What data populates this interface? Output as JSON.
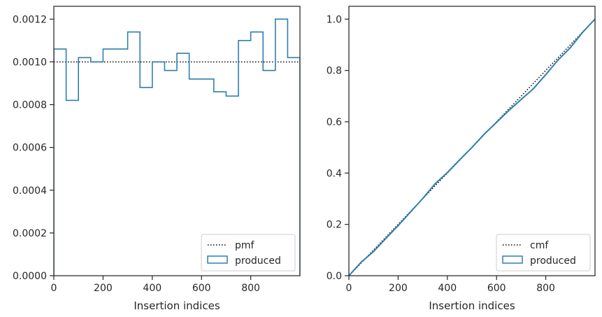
{
  "chart_data": [
    {
      "type": "histogram-step",
      "xlabel": "Insertion indices",
      "ylabel": "",
      "xlim": [
        0,
        1000
      ],
      "ylim": [
        0,
        0.00126
      ],
      "xticks": [
        0,
        200,
        400,
        600,
        800
      ],
      "xtick_labels": [
        "0",
        "200",
        "400",
        "600",
        "800"
      ],
      "yticks": [
        0,
        0.0002,
        0.0004,
        0.0006,
        0.0008,
        0.001,
        0.0012
      ],
      "ytick_labels": [
        "0.0000",
        "0.0002",
        "0.0004",
        "0.0006",
        "0.0008",
        "0.0010",
        "0.0012"
      ],
      "legend_position": "lower-right",
      "reference": {
        "name": "pmf",
        "value": 0.001,
        "style": "dotted",
        "color": "#000000"
      },
      "series": [
        {
          "name": "produced",
          "color": "#2f7fb0",
          "bin_edges": [
            0,
            50,
            100,
            150,
            200,
            250,
            300,
            350,
            400,
            450,
            500,
            550,
            600,
            650,
            700,
            750,
            800,
            850,
            900,
            950,
            1000
          ],
          "values": [
            0.00106,
            0.00082,
            0.00102,
            0.001,
            0.00106,
            0.00106,
            0.00114,
            0.00088,
            0.001,
            0.00096,
            0.00104,
            0.00092,
            0.00092,
            0.00086,
            0.00084,
            0.0011,
            0.00114,
            0.00096,
            0.0012,
            0.00102
          ]
        }
      ]
    },
    {
      "type": "line",
      "xlabel": "Insertion indices",
      "ylabel": "",
      "xlim": [
        0,
        1000
      ],
      "ylim": [
        0,
        1.05
      ],
      "xticks": [
        0,
        200,
        400,
        600,
        800
      ],
      "xtick_labels": [
        "0",
        "200",
        "400",
        "600",
        "800"
      ],
      "yticks": [
        0,
        0.2,
        0.4,
        0.6,
        0.8,
        1.0
      ],
      "ytick_labels": [
        "0.0",
        "0.2",
        "0.4",
        "0.6",
        "0.8",
        "1.0"
      ],
      "legend_position": "lower-right",
      "reference": {
        "name": "cmf",
        "x": [
          0,
          1000
        ],
        "y": [
          0,
          1
        ],
        "style": "dotted",
        "color": "#000000"
      },
      "series": [
        {
          "name": "produced",
          "color": "#2f7fb0",
          "x": [
            0,
            50,
            100,
            150,
            200,
            250,
            300,
            350,
            400,
            450,
            500,
            550,
            600,
            650,
            700,
            750,
            800,
            850,
            900,
            950,
            1000
          ],
          "y": [
            0,
            0.053,
            0.094,
            0.145,
            0.195,
            0.248,
            0.301,
            0.358,
            0.402,
            0.452,
            0.5,
            0.552,
            0.598,
            0.644,
            0.687,
            0.729,
            0.784,
            0.841,
            0.889,
            0.949,
            1.0
          ]
        }
      ]
    }
  ]
}
